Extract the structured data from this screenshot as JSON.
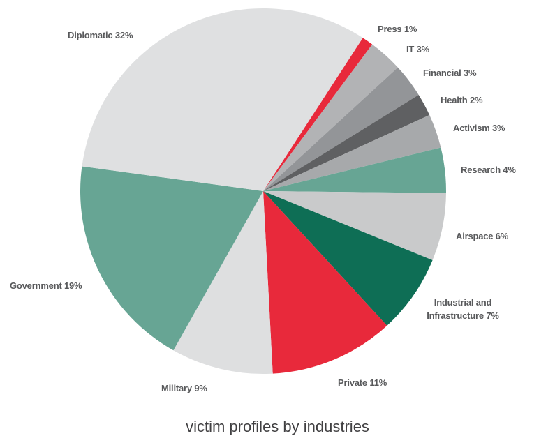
{
  "chart_data": {
    "type": "pie",
    "title": "victim profiles by industries",
    "categories": [
      "Press",
      "IT",
      "Financial",
      "Health",
      "Activism",
      "Research",
      "Airspace",
      "Industrial and Infrastructure",
      "Private",
      "Military",
      "Government",
      "Diplomatic"
    ],
    "values": [
      1,
      3,
      3,
      2,
      3,
      4,
      6,
      7,
      11,
      9,
      19,
      32
    ],
    "value_labels": [
      "1%",
      "3%",
      "3%",
      "2%",
      "3%",
      "4%",
      "6%",
      "7%",
      "11%",
      "9%",
      "19%",
      "32%"
    ],
    "colors": [
      "#e8293b",
      "#b2b3b5",
      "#939598",
      "#5f6062",
      "#a7a9ab",
      "#67a594",
      "#c9cacb",
      "#0e6e55",
      "#e8293b",
      "#dedfe0",
      "#67a594",
      "#dfe0e1"
    ]
  }
}
